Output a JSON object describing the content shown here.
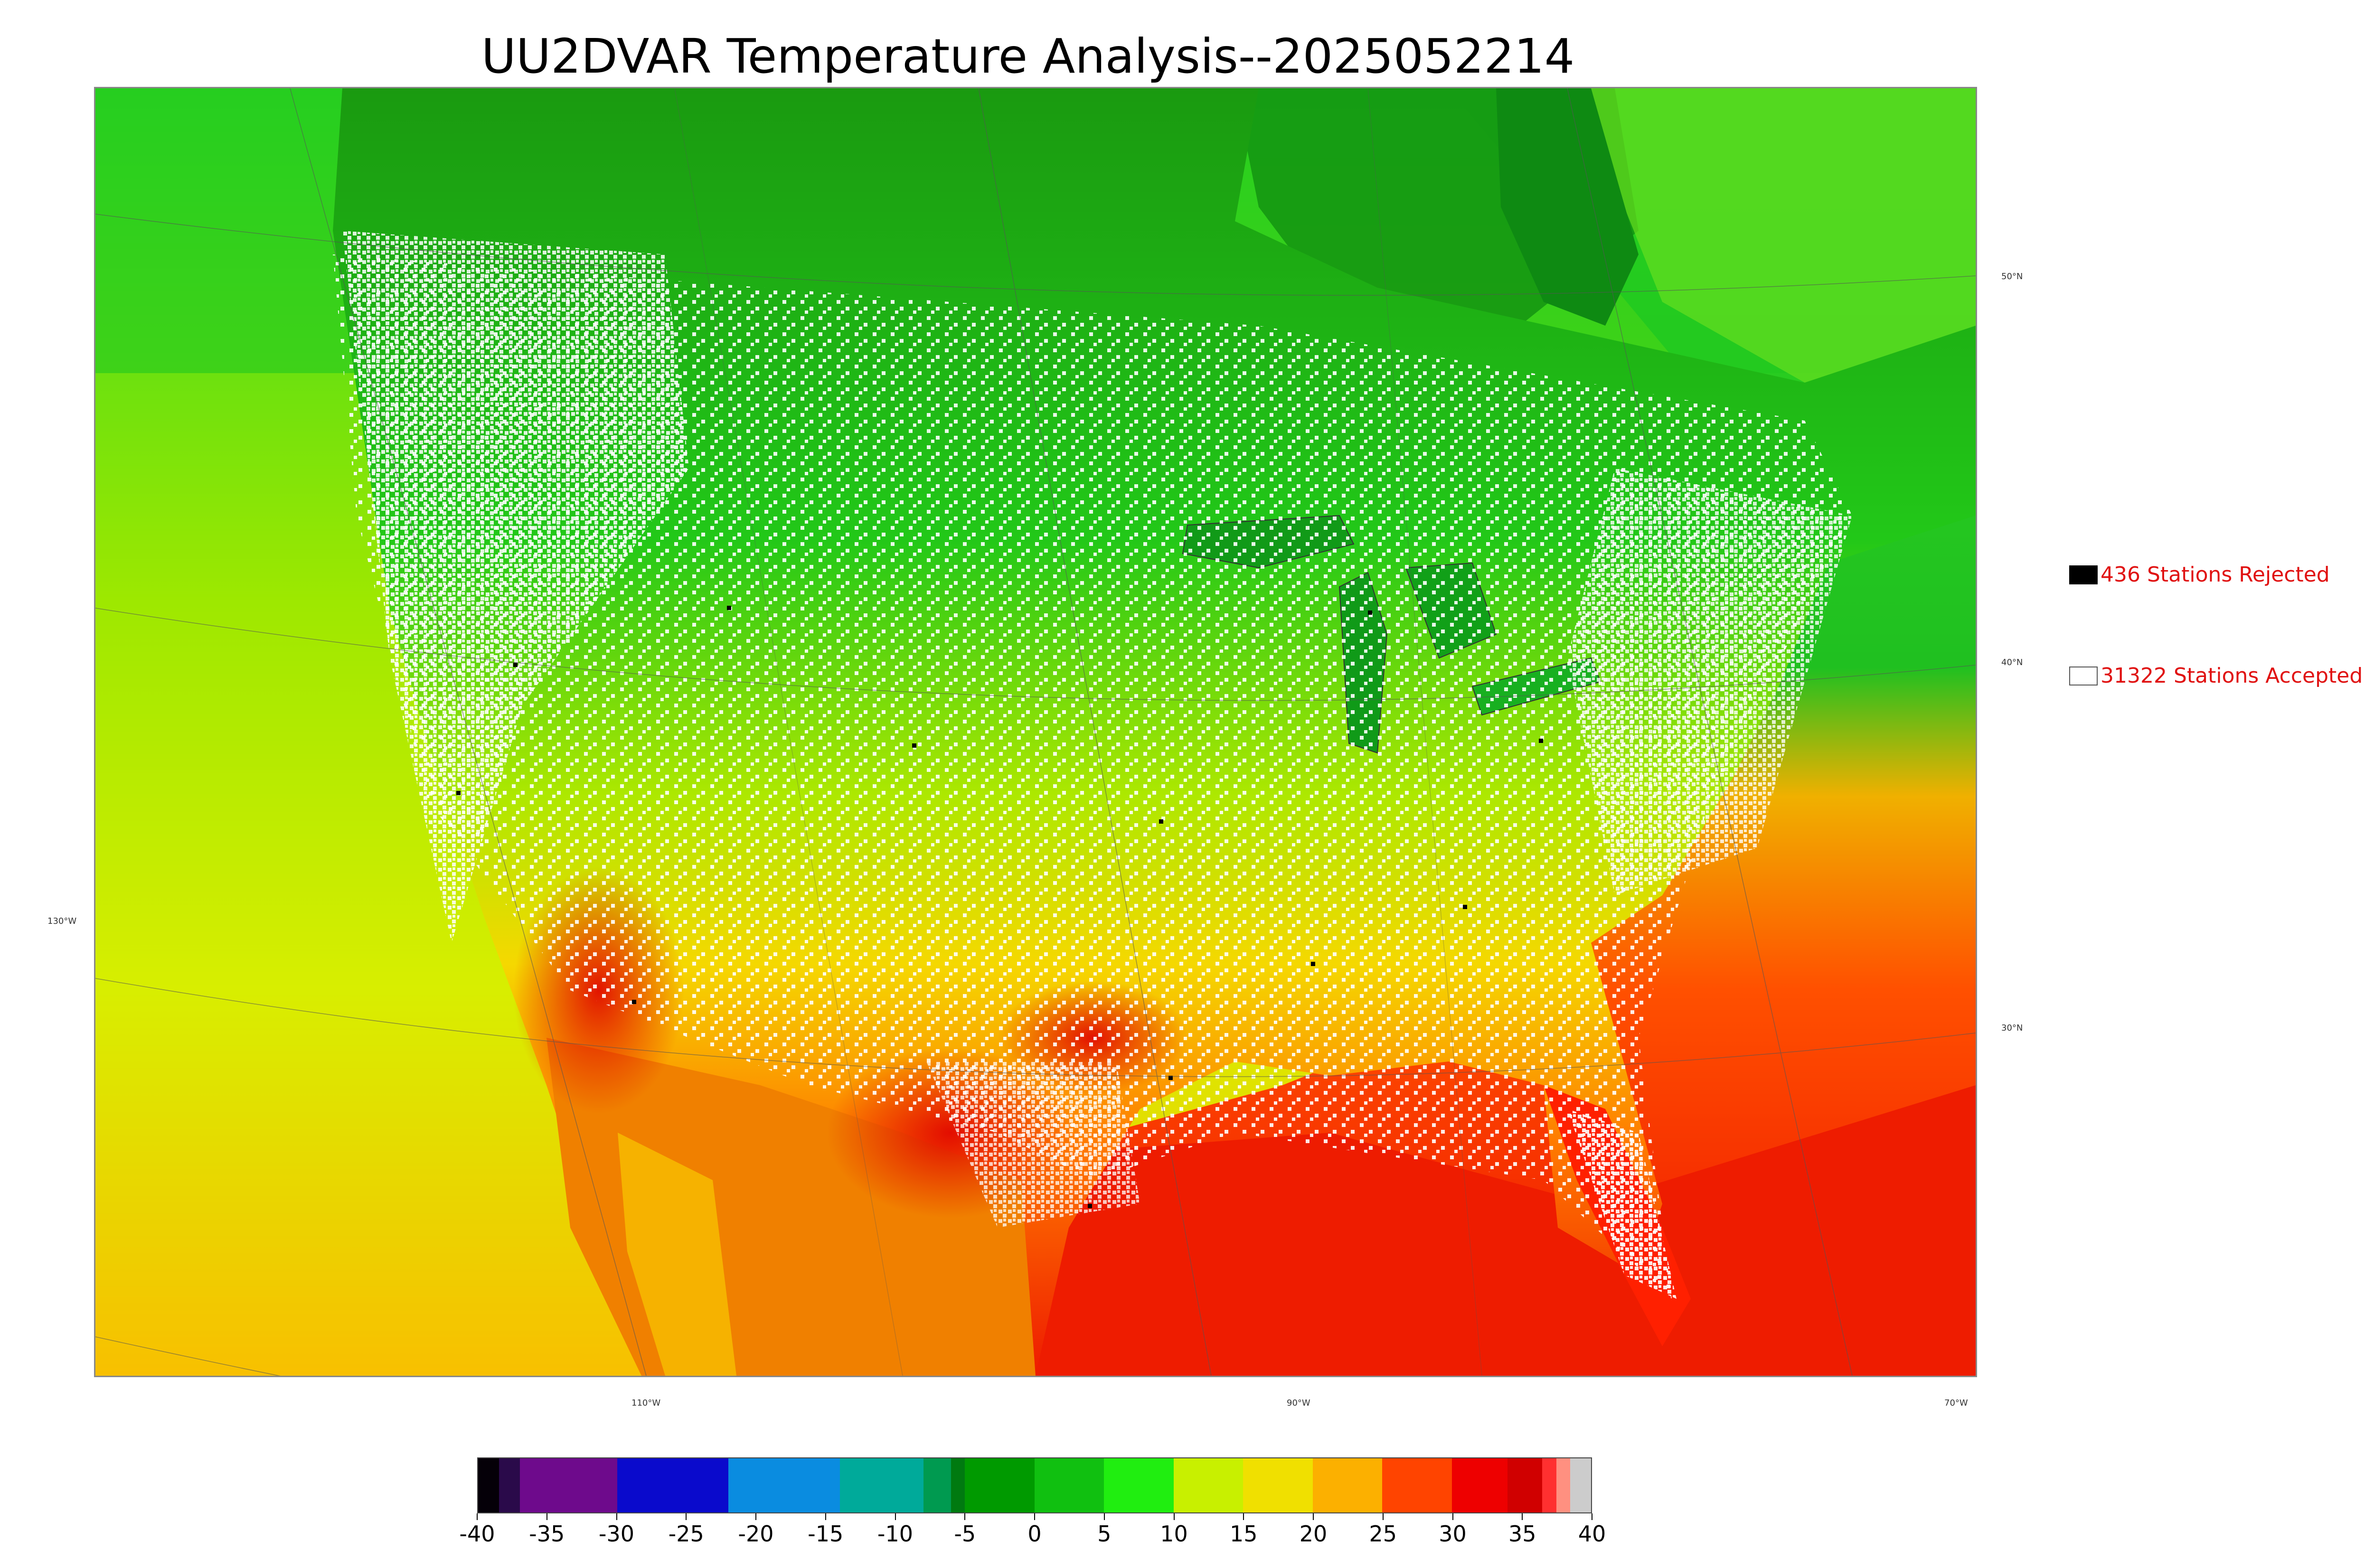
{
  "title": "UU2DVAR Temperature Analysis--2025052214",
  "graticule": {
    "lat_labels": [
      "50°N",
      "40°N",
      "30°N"
    ],
    "lon_labels": [
      "130°W",
      "110°W",
      "90°W",
      "70°W"
    ]
  },
  "legend": {
    "rejected": {
      "label": "436 Stations Rejected",
      "swatch_color": "#000000"
    },
    "accepted": {
      "label": "31322 Stations Accepted",
      "swatch_color": "#ffffff"
    }
  },
  "colorbar": {
    "min": -40,
    "max": 40,
    "units": "",
    "ticks": [
      "-40",
      "-35",
      "-30",
      "-25",
      "-20",
      "-15",
      "-10",
      "-5",
      "0",
      "5",
      "10",
      "15",
      "20",
      "25",
      "30",
      "35",
      "40"
    ],
    "colors": [
      {
        "from": -40,
        "to": -38.5,
        "color": "#050008"
      },
      {
        "from": -38.5,
        "to": -37,
        "color": "#2a0a4a"
      },
      {
        "from": -37,
        "to": -30,
        "color": "#6e0a8c"
      },
      {
        "from": -30,
        "to": -22,
        "color": "#0a0acc"
      },
      {
        "from": -22,
        "to": -14,
        "color": "#0a8ce0"
      },
      {
        "from": -14,
        "to": -8,
        "color": "#00aa9a"
      },
      {
        "from": -8,
        "to": -6,
        "color": "#009a50"
      },
      {
        "from": -6,
        "to": -5,
        "color": "#007a10"
      },
      {
        "from": -5,
        "to": 0,
        "color": "#009a00"
      },
      {
        "from": 0,
        "to": 5,
        "color": "#10c010"
      },
      {
        "from": 5,
        "to": 10,
        "color": "#20ee10"
      },
      {
        "from": 10,
        "to": 15,
        "color": "#c8f000"
      },
      {
        "from": 15,
        "to": 20,
        "color": "#f0e000"
      },
      {
        "from": 20,
        "to": 25,
        "color": "#fcb000"
      },
      {
        "from": 25,
        "to": 30,
        "color": "#ff4400"
      },
      {
        "from": 30,
        "to": 34,
        "color": "#ee0000"
      },
      {
        "from": 34,
        "to": 36.5,
        "color": "#d00000"
      },
      {
        "from": 36.5,
        "to": 37.5,
        "color": "#ff3030"
      },
      {
        "from": 37.5,
        "to": 38.5,
        "color": "#ff9080"
      },
      {
        "from": 38.5,
        "to": 40,
        "color": "#cccccc"
      }
    ]
  }
}
